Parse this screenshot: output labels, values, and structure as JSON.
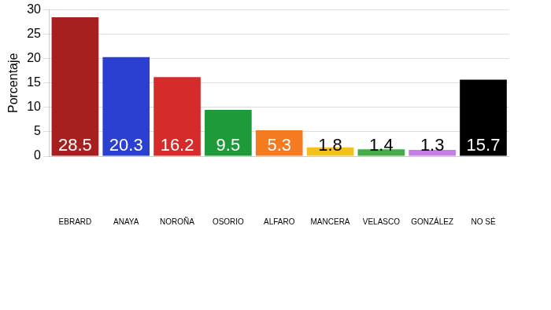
{
  "chart_data": {
    "type": "bar",
    "ylabel": "Porcentaje",
    "categories": [
      "EBRARD",
      "ANAYA",
      "NOROÑA",
      "OSORIO",
      "ALFARO",
      "MANCERA",
      "VELASCO",
      "GONZÁLEZ",
      "NO SÉ"
    ],
    "values": [
      28.5,
      20.3,
      16.2,
      9.5,
      5.3,
      1.8,
      1.4,
      1.3,
      15.7
    ],
    "colors": [
      "#a81f1f",
      "#2b3fd0",
      "#d52b2b",
      "#1f9a3b",
      "#f47b20",
      "#f3c11c",
      "#45ad48",
      "#c57de8",
      "#000000"
    ],
    "ylim": [
      0,
      30
    ],
    "yticks": [
      0,
      5,
      10,
      15,
      20,
      25,
      30
    ],
    "grid": true,
    "data_labels": true
  }
}
